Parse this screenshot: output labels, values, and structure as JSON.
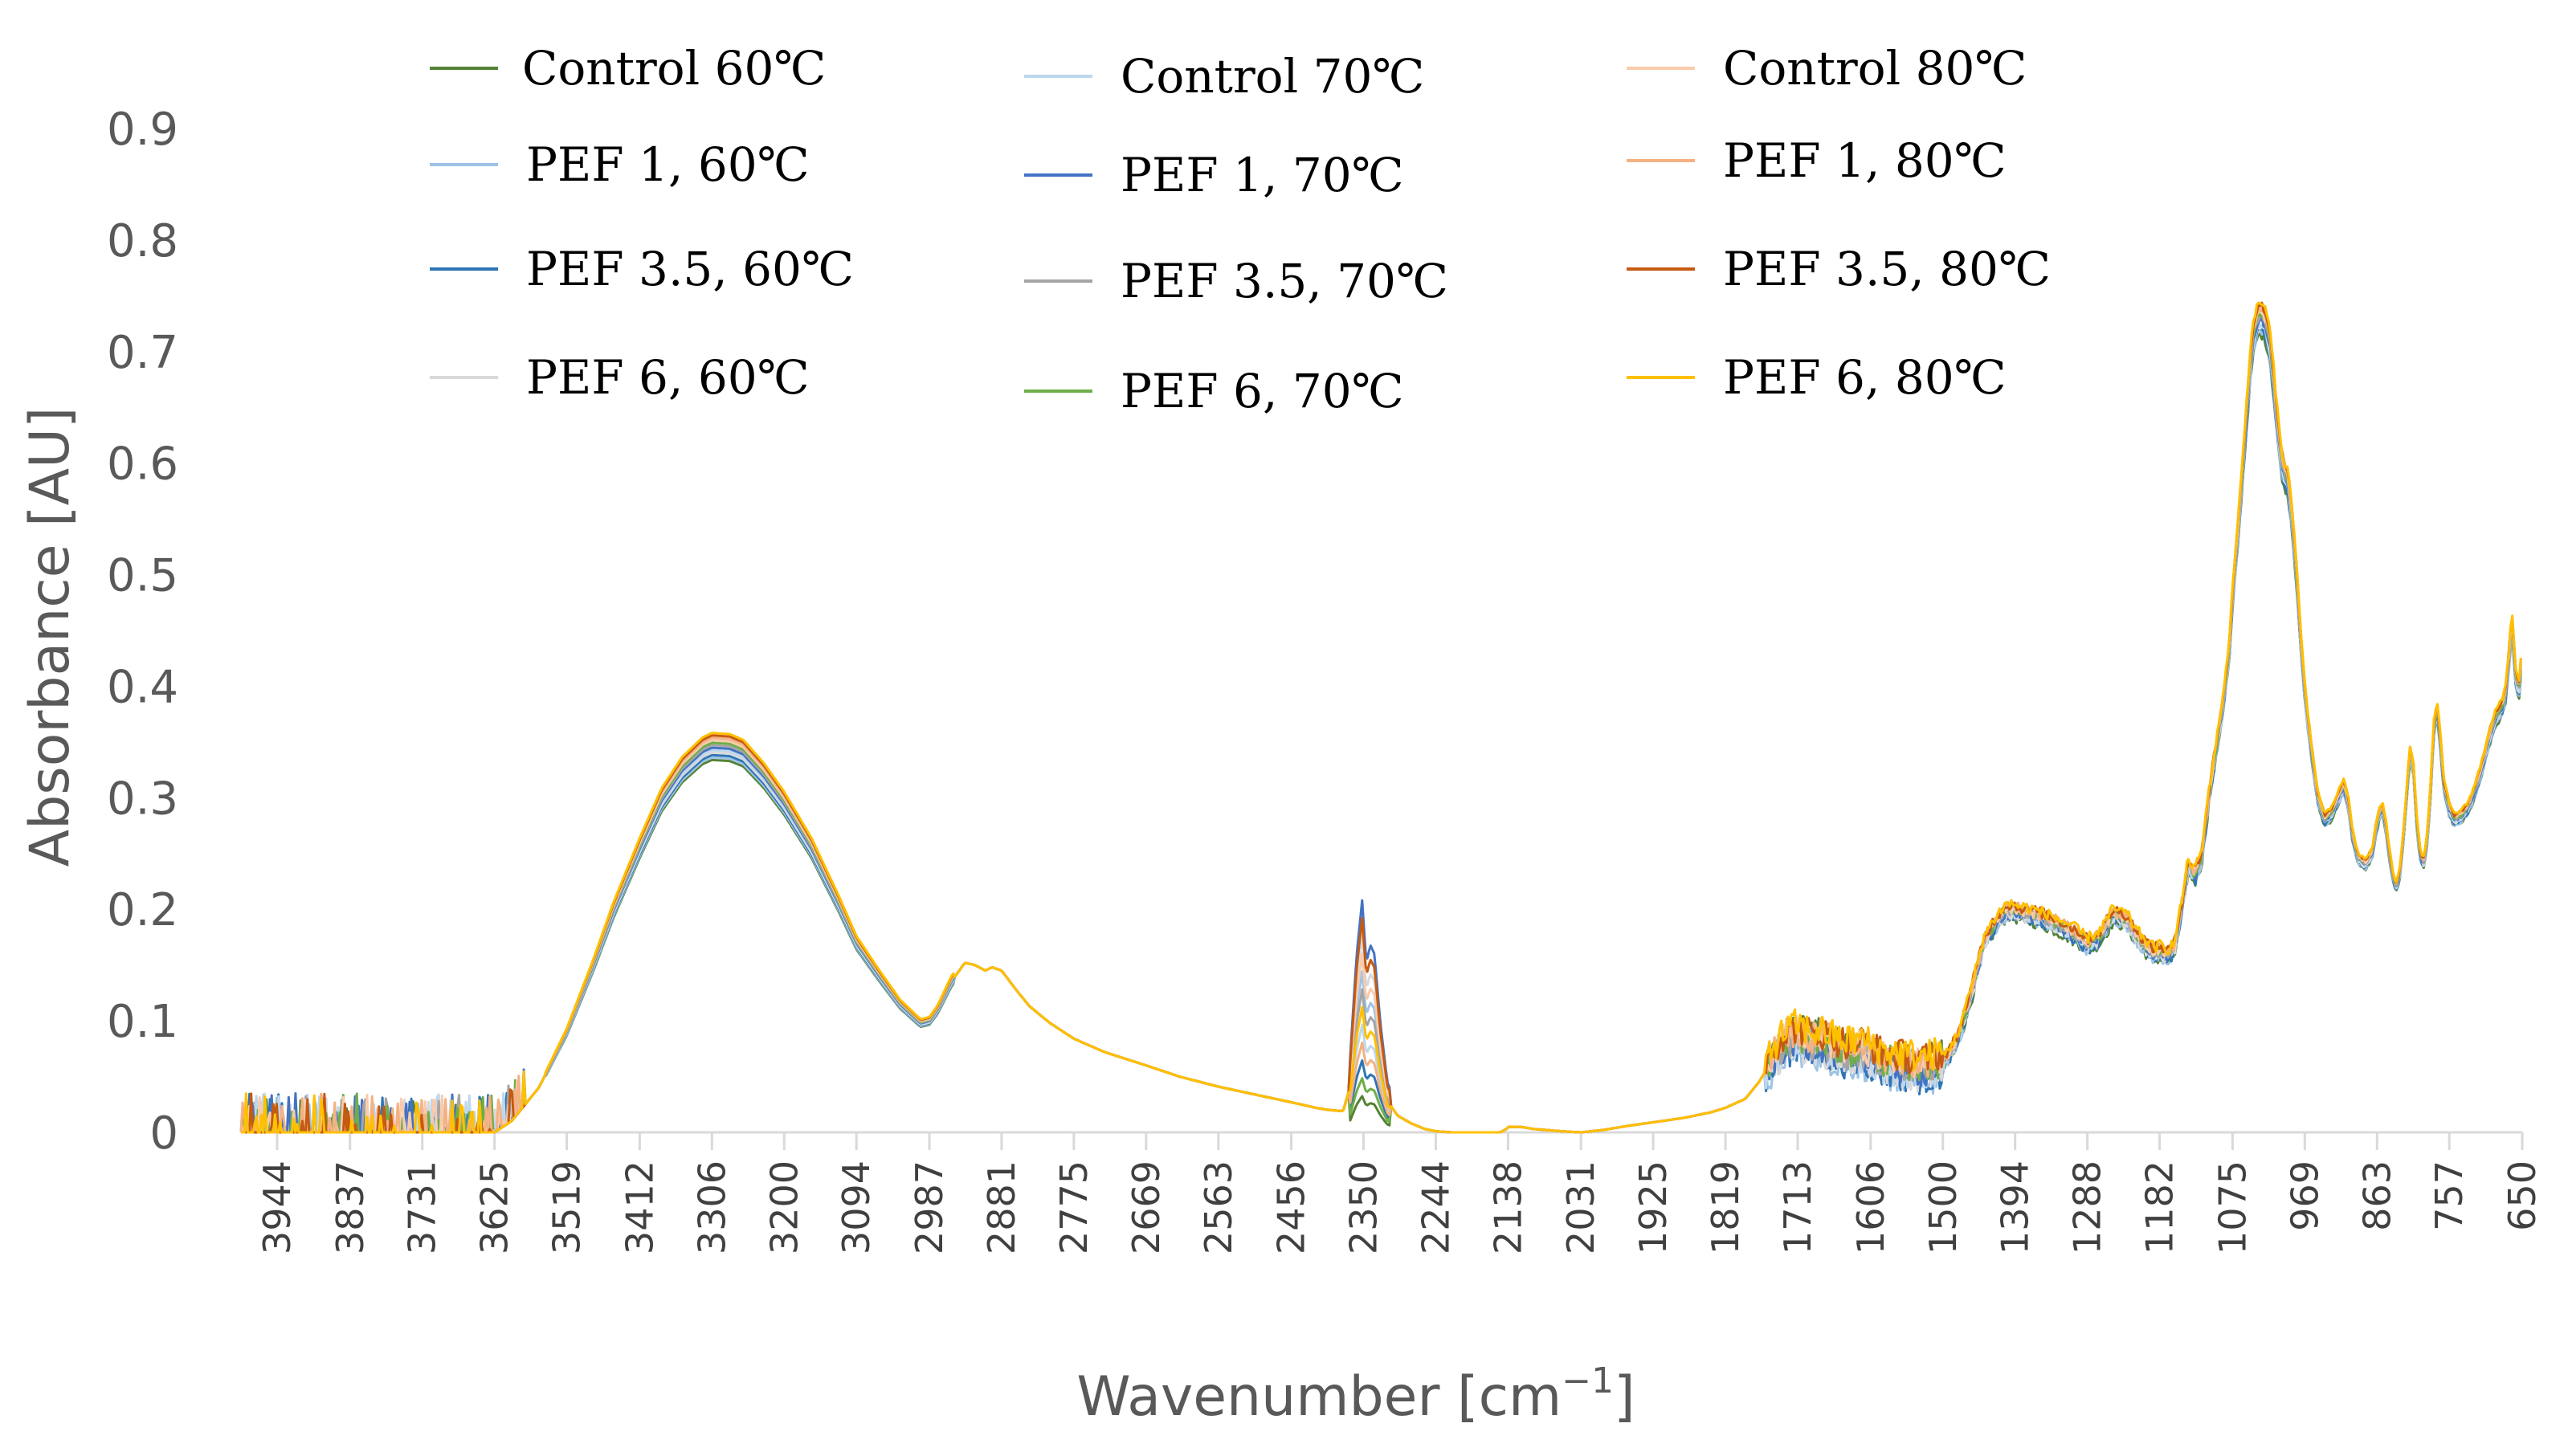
{
  "chart_data": {
    "type": "line",
    "title": "",
    "xlabel": "Wavenumber [cm",
    "xlabel_sup": "−1",
    "xlabel_end": "]",
    "ylabel": "Absorbance [AU]",
    "xlim": [
      3997,
      650
    ],
    "ylim": [
      0,
      0.9
    ],
    "x_reversed": true,
    "y_ticks": [
      "0",
      "0.1",
      "0.2",
      "0.3",
      "0.4",
      "0.5",
      "0.6",
      "0.7",
      "0.8",
      "0.9"
    ],
    "y_tick_values": [
      0,
      0.1,
      0.2,
      0.3,
      0.4,
      0.5,
      0.6,
      0.7,
      0.8,
      0.9
    ],
    "x_ticks": [
      "3944",
      "3837",
      "3731",
      "3625",
      "3519",
      "3412",
      "3306",
      "3200",
      "3094",
      "2987",
      "2881",
      "2775",
      "2669",
      "2563",
      "2456",
      "2350",
      "2244",
      "2138",
      "2031",
      "1925",
      "1819",
      "1713",
      "1606",
      "1500",
      "1394",
      "1288",
      "1182",
      "1075",
      "969",
      "863",
      "757",
      "650"
    ],
    "x_tick_values": [
      3944,
      3837,
      3731,
      3625,
      3519,
      3412,
      3306,
      3200,
      3094,
      2987,
      2881,
      2775,
      2669,
      2563,
      2456,
      2350,
      2244,
      2138,
      2031,
      1925,
      1819,
      1713,
      1606,
      1500,
      1394,
      1288,
      1182,
      1075,
      969,
      863,
      757,
      650
    ],
    "base_spectrum": {
      "x": [
        3997,
        3944,
        3900,
        3837,
        3780,
        3731,
        3680,
        3640,
        3625,
        3600,
        3560,
        3519,
        3480,
        3450,
        3412,
        3380,
        3350,
        3320,
        3306,
        3280,
        3260,
        3230,
        3200,
        3160,
        3120,
        3094,
        3060,
        3030,
        3000,
        2987,
        2975,
        2955,
        2935,
        2920,
        2905,
        2895,
        2881,
        2860,
        2840,
        2810,
        2775,
        2730,
        2669,
        2620,
        2563,
        2510,
        2456,
        2420,
        2400,
        2380,
        2370,
        2360,
        2352,
        2346,
        2340,
        2334,
        2325,
        2315,
        2300,
        2280,
        2260,
        2244,
        2220,
        2200,
        2180,
        2160,
        2150,
        2140,
        2138,
        2120,
        2100,
        2060,
        2031,
        2000,
        1960,
        1925,
        1880,
        1840,
        1819,
        1790,
        1770,
        1750,
        1730,
        1713,
        1700,
        1690,
        1680,
        1660,
        1640,
        1620,
        1606,
        1590,
        1570,
        1550,
        1530,
        1515,
        1500,
        1480,
        1460,
        1440,
        1420,
        1405,
        1394,
        1380,
        1360,
        1340,
        1320,
        1300,
        1288,
        1270,
        1250,
        1230,
        1215,
        1200,
        1190,
        1182,
        1170,
        1160,
        1150,
        1140,
        1130,
        1120,
        1110,
        1100,
        1090,
        1080,
        1075,
        1068,
        1062,
        1056,
        1050,
        1045,
        1040,
        1035,
        1030,
        1025,
        1020,
        1015,
        1010,
        1005,
        1000,
        995,
        990,
        985,
        980,
        975,
        969,
        960,
        950,
        940,
        930,
        920,
        912,
        905,
        900,
        895,
        890,
        880,
        870,
        865,
        860,
        855,
        850,
        845,
        840,
        835,
        830,
        825,
        820,
        815,
        810,
        805,
        800,
        795,
        790,
        785,
        780,
        775,
        770,
        765,
        757,
        750,
        740,
        730,
        720,
        710,
        700,
        690,
        680,
        675,
        670,
        665,
        660,
        655,
        650
      ],
      "y": [
        0,
        0,
        0,
        0,
        0,
        0,
        0,
        0,
        0,
        0.01,
        0.04,
        0.09,
        0.15,
        0.2,
        0.255,
        0.298,
        0.325,
        0.342,
        0.346,
        0.345,
        0.34,
        0.32,
        0.295,
        0.255,
        0.205,
        0.17,
        0.14,
        0.115,
        0.098,
        0.1,
        0.11,
        0.135,
        0.152,
        0.15,
        0.145,
        0.148,
        0.145,
        0.128,
        0.113,
        0.098,
        0.084,
        0.072,
        0.06,
        0.05,
        0.041,
        0.034,
        0.027,
        0.022,
        0.02,
        0.019,
        0.04,
        0.1,
        0.13,
        0.095,
        0.105,
        0.1,
        0.06,
        0.028,
        0.015,
        0.008,
        0.003,
        0.001,
        0,
        0,
        0,
        0,
        0,
        0.003,
        0.005,
        0.005,
        0.003,
        0.001,
        0,
        0.002,
        0.006,
        0.009,
        0.013,
        0.018,
        0.022,
        0.03,
        0.045,
        0.065,
        0.08,
        0.085,
        0.08,
        0.078,
        0.08,
        0.074,
        0.07,
        0.072,
        0.068,
        0.062,
        0.06,
        0.058,
        0.056,
        0.058,
        0.062,
        0.08,
        0.12,
        0.17,
        0.19,
        0.2,
        0.198,
        0.196,
        0.193,
        0.188,
        0.182,
        0.175,
        0.168,
        0.175,
        0.195,
        0.19,
        0.175,
        0.165,
        0.16,
        0.162,
        0.158,
        0.165,
        0.2,
        0.24,
        0.23,
        0.248,
        0.3,
        0.34,
        0.38,
        0.43,
        0.48,
        0.53,
        0.58,
        0.63,
        0.68,
        0.71,
        0.725,
        0.73,
        0.728,
        0.72,
        0.705,
        0.675,
        0.64,
        0.61,
        0.59,
        0.585,
        0.565,
        0.53,
        0.49,
        0.44,
        0.395,
        0.345,
        0.3,
        0.28,
        0.285,
        0.3,
        0.31,
        0.295,
        0.27,
        0.255,
        0.245,
        0.24,
        0.25,
        0.27,
        0.285,
        0.29,
        0.275,
        0.25,
        0.23,
        0.22,
        0.23,
        0.26,
        0.3,
        0.34,
        0.33,
        0.28,
        0.25,
        0.24,
        0.26,
        0.3,
        0.36,
        0.38,
        0.35,
        0.31,
        0.29,
        0.28,
        0.283,
        0.29,
        0.305,
        0.325,
        0.35,
        0.37,
        0.38,
        0.39,
        0.42,
        0.46,
        0.41,
        0.395,
        0.43
      ]
    },
    "series": [
      {
        "name": "Control 60",
        "unit": "℃",
        "color": "#548235"
      },
      {
        "name": "PEF 1, 60",
        "unit": "℃",
        "color": "#9DC3E6"
      },
      {
        "name": "PEF 3.5, 60",
        "unit": "℃",
        "color": "#2E75B6"
      },
      {
        "name": "PEF 6, 60",
        "unit": "℃",
        "color": "#D9D9D9"
      },
      {
        "name": "Control 70",
        "unit": "℃",
        "color": "#BDD7EE"
      },
      {
        "name": "PEF 1, 70",
        "unit": "℃",
        "color": "#4472C4"
      },
      {
        "name": "PEF 3.5, 70",
        "unit": "℃",
        "color": "#A5A5A5"
      },
      {
        "name": "PEF 6, 70",
        "unit": "℃",
        "color": "#70AD47"
      },
      {
        "name": "Control 80",
        "unit": "℃",
        "color": "#F8CBAD"
      },
      {
        "name": "PEF 1, 80",
        "unit": "℃",
        "color": "#F4B183"
      },
      {
        "name": "PEF 3.5, 80",
        "unit": "℃",
        "color": "#C55A11"
      },
      {
        "name": "PEF 6, 80",
        "unit": "℃",
        "color": "#FFC000"
      }
    ]
  }
}
